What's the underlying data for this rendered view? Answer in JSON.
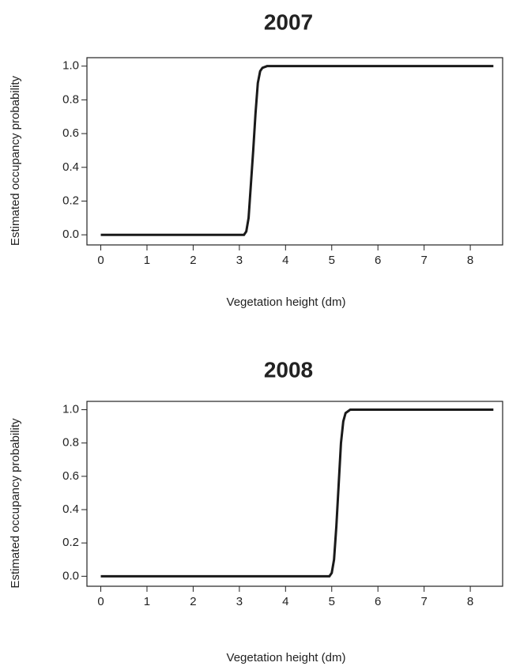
{
  "chart_data": [
    {
      "type": "line",
      "title": "2007",
      "xlabel": "Vegetation height (dm)",
      "ylabel": "Estimated occupancy probability",
      "series": [
        {
          "color": "#1a1a1a",
          "x": [
            0,
            3.1,
            3.15,
            3.2,
            3.25,
            3.3,
            3.35,
            3.4,
            3.45,
            3.5,
            3.6,
            8.5
          ],
          "values": [
            0,
            0,
            0.02,
            0.1,
            0.3,
            0.5,
            0.72,
            0.9,
            0.97,
            0.99,
            1.0,
            1.0
          ]
        }
      ],
      "xlim": [
        -0.3,
        8.7
      ],
      "xticks": [
        0,
        1,
        2,
        3,
        4,
        5,
        6,
        7,
        8
      ],
      "ylim": [
        -0.06,
        1.05
      ],
      "yticks": [
        {
          "value": 0,
          "label": "0.0"
        },
        0.2,
        0.4,
        0.6,
        0.8,
        {
          "value": 1,
          "label": "1.0"
        }
      ]
    },
    {
      "type": "line",
      "title": "2008",
      "xlabel": "Vegetation height (dm)",
      "ylabel": "Estimated occupancy probability",
      "series": [
        {
          "color": "#1a1a1a",
          "x": [
            0,
            4.95,
            5.0,
            5.05,
            5.1,
            5.15,
            5.2,
            5.25,
            5.3,
            5.4,
            8.5
          ],
          "values": [
            0,
            0,
            0.02,
            0.1,
            0.3,
            0.55,
            0.8,
            0.93,
            0.98,
            1.0,
            1.0
          ]
        }
      ],
      "xlim": [
        -0.3,
        8.7
      ],
      "xticks": [
        0,
        1,
        2,
        3,
        4,
        5,
        6,
        7,
        8
      ],
      "ylim": [
        -0.06,
        1.05
      ],
      "yticks": [
        {
          "value": 0,
          "label": "0.0"
        },
        0.2,
        0.4,
        0.6,
        0.8,
        {
          "value": 1,
          "label": "1.0"
        }
      ]
    }
  ]
}
